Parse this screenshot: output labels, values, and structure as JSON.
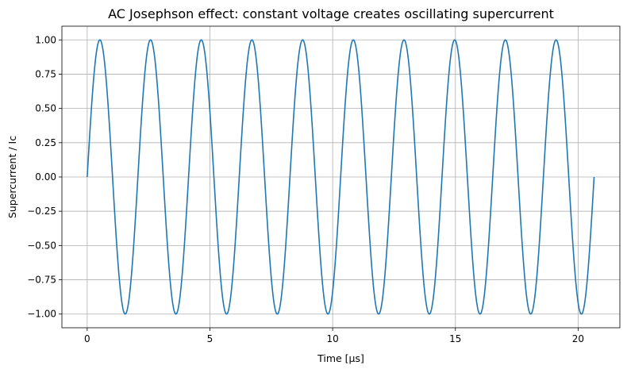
{
  "chart_data": {
    "type": "line",
    "title": "AC Josephson effect: constant voltage creates oscillating supercurrent",
    "xlabel": "Time [μs]",
    "ylabel": "Supercurrent / Ic",
    "xlim": [
      -1.03,
      21.7
    ],
    "ylim": [
      -1.1,
      1.1
    ],
    "x_ticks": [
      0,
      5,
      10,
      15,
      20
    ],
    "x_tick_labels": [
      "0",
      "5",
      "10",
      "15",
      "20"
    ],
    "y_ticks": [
      -1.0,
      -0.75,
      -0.5,
      -0.25,
      0.0,
      0.25,
      0.5,
      0.75,
      1.0
    ],
    "y_tick_labels": [
      "−1.00",
      "−0.75",
      "−0.50",
      "−0.25",
      "0.00",
      "0.25",
      "0.50",
      "0.75",
      "1.00"
    ],
    "grid": true,
    "series": [
      {
        "function": "sin",
        "x_start": 0,
        "x_end": 20.65,
        "period": 2.065,
        "amplitude": 1.0,
        "cycles": 10,
        "color": "#1f77b4"
      }
    ]
  }
}
